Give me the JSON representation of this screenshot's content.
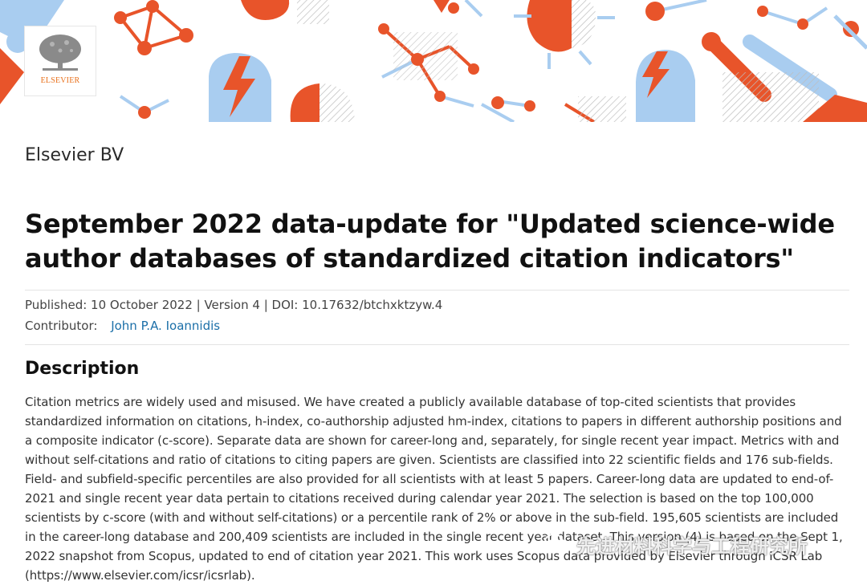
{
  "banner": {
    "logo_text": "ELSEVIER",
    "colors": {
      "orange": "#e8542a",
      "blue": "#a9cdf0",
      "grey": "#c4c4c4"
    }
  },
  "publisher": "Elsevier BV",
  "dataset": {
    "title": "September 2022 data-update for \"Updated science-wide author databases of standardized citation indicators\"",
    "meta": "Published: 10 October 2022 | Version 4 | DOI: 10.17632/btchxktzyw.4",
    "contributor_label": "Contributor:",
    "contributor_name": "John P.A. Ioannidis"
  },
  "description": {
    "heading": "Description",
    "text": "Citation metrics are widely used and misused. We have created a publicly available database of top-cited scientists that provides standardized information on citations, h-index, co-authorship adjusted hm-index, citations to papers in different authorship positions and a composite indicator (c-score). Separate data are shown for career-long and, separately, for single recent year impact. Metrics with and without self-citations and ratio of citations to citing papers are given. Scientists are classified into 22 scientific fields and 176 sub-fields. Field- and subfield-specific percentiles are also provided for all scientists with at least 5 papers. Career-long data are updated to end-of-2021 and single recent year data pertain to citations received during calendar year 2021. The selection is based on the top 100,000 scientists by c-score (with and without self-citations) or a percentile rank of 2% or above in the sub-field. 195,605 scientists are included in the career-long database and 200,409 scientists are included in the single recent year dataset. This version (4) is based on the Sept 1, 2022 snapshot from Scopus, updated to end of citation year 2021. This work uses Scopus data provided by Elsevier through ICSR Lab (https://www.elsevier.com/icsr/icsrlab)."
  },
  "watermark": {
    "text": "先进材料科学与工程研究所",
    "icon": "wechat-icon"
  }
}
